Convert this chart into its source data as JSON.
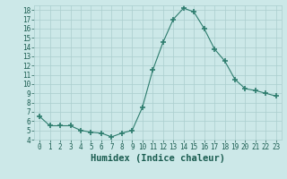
{
  "x": [
    0,
    1,
    2,
    3,
    4,
    5,
    6,
    7,
    8,
    9,
    10,
    11,
    12,
    13,
    14,
    15,
    16,
    17,
    18,
    19,
    20,
    21,
    22,
    23
  ],
  "y": [
    6.5,
    5.5,
    5.5,
    5.5,
    5.0,
    4.8,
    4.7,
    4.3,
    4.7,
    5.0,
    7.5,
    11.5,
    14.5,
    17.0,
    18.2,
    17.8,
    16.0,
    13.8,
    12.5,
    10.5,
    9.5,
    9.3,
    9.0,
    8.7
  ],
  "line_color": "#2e7d6e",
  "marker": "+",
  "marker_size": 4,
  "bg_color": "#cce8e8",
  "grid_color": "#aacece",
  "xlabel": "Humidex (Indice chaleur)",
  "ylim": [
    4,
    18.5
  ],
  "xlim": [
    -0.5,
    23.5
  ],
  "yticks": [
    4,
    5,
    6,
    7,
    8,
    9,
    10,
    11,
    12,
    13,
    14,
    15,
    16,
    17,
    18
  ],
  "xticks": [
    0,
    1,
    2,
    3,
    4,
    5,
    6,
    7,
    8,
    9,
    10,
    11,
    12,
    13,
    14,
    15,
    16,
    17,
    18,
    19,
    20,
    21,
    22,
    23
  ],
  "tick_fontsize": 5.5,
  "xlabel_fontsize": 7.5,
  "label_color": "#1a5c50"
}
